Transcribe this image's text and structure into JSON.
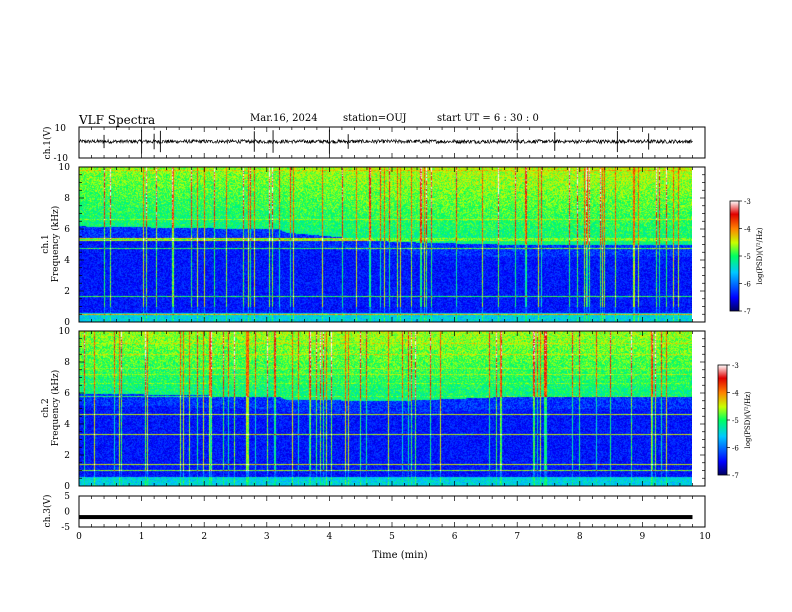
{
  "header": {
    "title": "VLF Spectra",
    "date": "Mar.16, 2024",
    "station": "station=OUJ",
    "start": "start  UT =   6 : 30 : 0"
  },
  "chart_data": [
    {
      "type": "line",
      "panel": "ch1-waveform",
      "ylabel": "ch.1(V)",
      "ylim": [
        -10,
        10
      ],
      "yticks": [
        "10",
        "-10"
      ],
      "xlim": [
        0,
        10
      ],
      "baseline": 0,
      "noise_amplitude": 1.2,
      "spike_times": [
        0.4,
        1.0,
        1.2,
        1.3,
        2.8,
        3.1,
        4.0,
        4.3,
        7.0,
        7.6,
        8.6,
        9.1
      ],
      "color": "#000000"
    },
    {
      "type": "heatmap",
      "panel": "ch1-spectrogram",
      "ylabel": "ch.1\nFrequency (kHz)",
      "ylim": [
        0,
        10
      ],
      "yticks": [
        "0",
        "2",
        "4",
        "6",
        "8",
        "10"
      ],
      "xlim": [
        0,
        10
      ],
      "band_edge_khz": [
        6.2,
        6.0,
        5.8,
        5.2,
        5.0,
        5.0
      ],
      "band_edge_times": [
        0,
        3.2,
        3.3,
        5,
        7,
        9.8
      ],
      "colorbar": {
        "min": -7,
        "max": -3,
        "ticks": [
          "-3",
          "-4",
          "-5",
          "-6",
          "-7"
        ],
        "label": "log(PSD)(V²/Hz)"
      }
    },
    {
      "type": "heatmap",
      "panel": "ch2-spectrogram",
      "ylabel": "ch.2\nFrequency (kHz)",
      "ylim": [
        0,
        10
      ],
      "yticks": [
        "0",
        "2",
        "4",
        "6",
        "8",
        "10"
      ],
      "xlim": [
        0,
        10
      ],
      "band_edge_khz": [
        6.0,
        5.8,
        5.6,
        5.5,
        5.8,
        5.8
      ],
      "band_edge_times": [
        0,
        3.2,
        3.3,
        5,
        7,
        9.8
      ],
      "colorbar": {
        "min": -7,
        "max": -3,
        "ticks": [
          "-3",
          "-4",
          "-5",
          "-6",
          "-7"
        ],
        "label": "log(PSD)(V²/Hz)"
      }
    },
    {
      "type": "line",
      "panel": "ch3-waveform",
      "ylabel": "ch.3(V)",
      "ylim": [
        -5,
        5
      ],
      "yticks": [
        "5",
        "0",
        "-5"
      ],
      "xlim": [
        0,
        10
      ],
      "xticks": [
        "0",
        "1",
        "2",
        "3",
        "4",
        "5",
        "6",
        "7",
        "8",
        "9",
        "10"
      ],
      "xlabel": "Time (min)",
      "constant_value": -1.8,
      "color": "#000000"
    }
  ]
}
